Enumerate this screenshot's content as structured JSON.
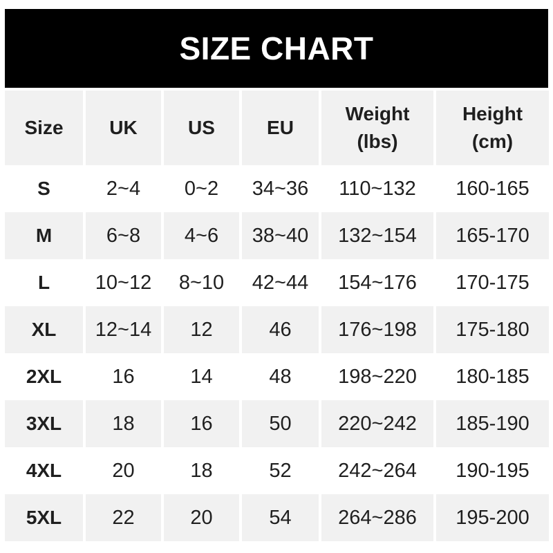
{
  "banner": {
    "title": "SIZE CHART",
    "bg_color": "#000000",
    "text_color": "#ffffff"
  },
  "colors": {
    "page_bg": "#ffffff",
    "row_alt_bg": "#f1f1f1",
    "text": "#1f1f1f"
  },
  "chart_data": {
    "type": "table",
    "title": "SIZE CHART",
    "columns": [
      "Size",
      "UK",
      "US",
      "EU",
      "Weight\n(lbs)",
      "Height\n(cm)"
    ],
    "rows": [
      [
        "S",
        "2~4",
        "0~2",
        "34~36",
        "110~132",
        "160-165"
      ],
      [
        "M",
        "6~8",
        "4~6",
        "38~40",
        "132~154",
        "165-170"
      ],
      [
        "L",
        "10~12",
        "8~10",
        "42~44",
        "154~176",
        "170-175"
      ],
      [
        "XL",
        "12~14",
        "12",
        "46",
        "176~198",
        "175-180"
      ],
      [
        "2XL",
        "16",
        "14",
        "48",
        "198~220",
        "180-185"
      ],
      [
        "3XL",
        "18",
        "16",
        "50",
        "220~242",
        "185-190"
      ],
      [
        "4XL",
        "20",
        "18",
        "52",
        "242~264",
        "190-195"
      ],
      [
        "5XL",
        "22",
        "20",
        "54",
        "264~286",
        "195-200"
      ]
    ],
    "layout_hints": {
      "alternating_row_shading": "rows M, XL, 3XL, 5XL shaded gray",
      "range_separator_weight_uk_us_eu": "~",
      "range_separator_height": "-"
    }
  }
}
